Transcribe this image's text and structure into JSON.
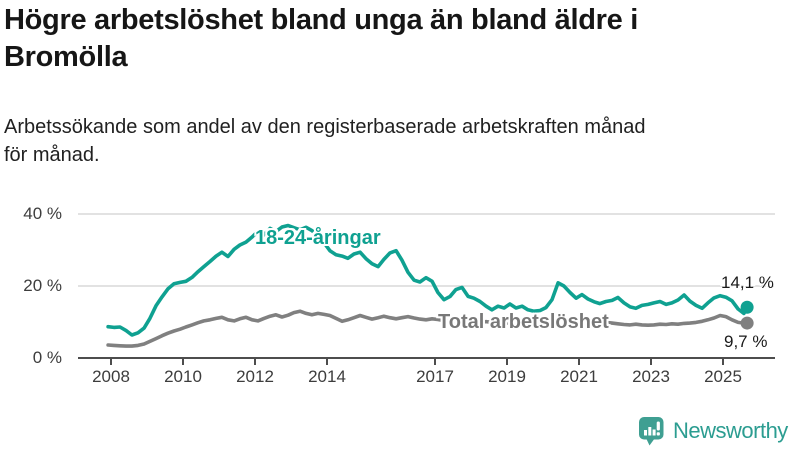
{
  "header": {
    "title_lines": [
      "Högre arbetslöshet bland unga än bland äldre i",
      "Bromölla"
    ],
    "subtitle_lines": [
      "Arbetssökande som andel av den registerbaserade arbetskraften månad",
      "för månad."
    ]
  },
  "colors": {
    "young_line": "#0FA191",
    "total_line": "#808080",
    "total_label": "#787878",
    "gridline": "#d9d9d9",
    "axis": "#4d4d4d",
    "logo_icon": "#3F9F92",
    "logo_text": "#2C9D91"
  },
  "annotations": {
    "young_label": "18-24-åringar",
    "total_label": "Total arbetslöshet",
    "young_end_value": "14,1 %",
    "total_end_value": "9,7 %"
  },
  "logo": {
    "name": "Newsworthy"
  },
  "chart_data": {
    "type": "line",
    "title": "Högre arbetslöshet bland unga än bland äldre i Bromölla",
    "xlabel": "",
    "ylabel": "Arbetssökande som andel av den registerbaserade arbetskraften (%)",
    "ylim": [
      0,
      44
    ],
    "xlim": [
      2007.9,
      2026.4
    ],
    "grid": "horizontal",
    "legend_position": "inline-labels",
    "y_ticks": [
      {
        "value": 0,
        "label": "0 %"
      },
      {
        "value": 20,
        "label": "20 %"
      },
      {
        "value": 40,
        "label": "40 %"
      }
    ],
    "x_ticks": [
      {
        "value": 2008,
        "label": "2008"
      },
      {
        "value": 2010,
        "label": "2010"
      },
      {
        "value": 2012,
        "label": "2012"
      },
      {
        "value": 2014,
        "label": "2014"
      },
      {
        "value": 2017,
        "label": "2017"
      },
      {
        "value": 2019,
        "label": "2019"
      },
      {
        "value": 2021,
        "label": "2021"
      },
      {
        "value": 2023,
        "label": "2023"
      },
      {
        "value": 2025,
        "label": "2025"
      }
    ],
    "x": [
      2007.92,
      2008.08,
      2008.25,
      2008.42,
      2008.58,
      2008.75,
      2008.92,
      2009.08,
      2009.25,
      2009.42,
      2009.58,
      2009.75,
      2009.92,
      2010.08,
      2010.25,
      2010.42,
      2010.58,
      2010.75,
      2010.92,
      2011.08,
      2011.25,
      2011.42,
      2011.58,
      2011.75,
      2011.92,
      2012.08,
      2012.25,
      2012.42,
      2012.58,
      2012.75,
      2012.92,
      2013.08,
      2013.25,
      2013.42,
      2013.58,
      2013.75,
      2013.92,
      2014.08,
      2014.25,
      2014.42,
      2014.58,
      2014.75,
      2014.92,
      2015.08,
      2015.25,
      2015.42,
      2015.58,
      2015.75,
      2015.92,
      2016.08,
      2016.25,
      2016.42,
      2016.58,
      2016.75,
      2016.92,
      2017.08,
      2017.25,
      2017.42,
      2017.58,
      2017.75,
      2017.92,
      2018.08,
      2018.25,
      2018.42,
      2018.58,
      2018.75,
      2018.92,
      2019.08,
      2019.25,
      2019.42,
      2019.58,
      2019.75,
      2019.92,
      2020.08,
      2020.25,
      2020.42,
      2020.58,
      2020.75,
      2020.92,
      2021.08,
      2021.25,
      2021.42,
      2021.58,
      2021.75,
      2021.92,
      2022.08,
      2022.25,
      2022.42,
      2022.58,
      2022.75,
      2022.92,
      2023.08,
      2023.25,
      2023.42,
      2023.58,
      2023.75,
      2023.92,
      2024.08,
      2024.25,
      2024.42,
      2024.58,
      2024.75,
      2024.92,
      2025.08,
      2025.25,
      2025.42,
      2025.58,
      2025.67
    ],
    "series": [
      {
        "name": "18-24-åringar",
        "color": "#0FA191",
        "end_label": "14,1 %",
        "end_value": 14.1,
        "values": [
          8.7,
          8.5,
          8.6,
          7.6,
          6.4,
          7.0,
          8.3,
          11.0,
          14.5,
          17.0,
          19.2,
          20.6,
          21.0,
          21.3,
          22.4,
          24.0,
          25.4,
          26.8,
          28.3,
          29.4,
          28.2,
          30.2,
          31.4,
          32.2,
          33.6,
          35.2,
          34.2,
          36.0,
          35.1,
          36.4,
          36.8,
          36.2,
          35.6,
          36.3,
          35.4,
          34.2,
          32.0,
          29.8,
          28.7,
          28.3,
          27.7,
          28.9,
          29.4,
          27.6,
          26.2,
          25.4,
          27.4,
          29.2,
          29.8,
          27.2,
          23.8,
          21.6,
          21.1,
          22.3,
          21.3,
          18.2,
          16.2,
          17.1,
          19.0,
          19.6,
          17.1,
          16.6,
          15.7,
          14.4,
          13.4,
          14.4,
          13.9,
          15.0,
          13.9,
          14.4,
          13.4,
          13.0,
          13.2,
          14.0,
          16.2,
          20.9,
          20.0,
          18.2,
          16.6,
          17.6,
          16.4,
          15.6,
          15.1,
          15.7,
          16.0,
          16.8,
          15.3,
          14.2,
          13.8,
          14.6,
          14.9,
          15.3,
          15.7,
          14.9,
          15.3,
          16.1,
          17.5,
          15.8,
          14.6,
          13.8,
          15.3,
          16.7,
          17.3,
          16.9,
          15.9,
          13.6,
          12.4,
          14.1
        ]
      },
      {
        "name": "Total arbetslöshet",
        "color": "#808080",
        "end_label": "9,7 %",
        "end_value": 9.7,
        "values": [
          3.6,
          3.5,
          3.4,
          3.3,
          3.3,
          3.5,
          3.9,
          4.6,
          5.4,
          6.2,
          6.9,
          7.5,
          8.0,
          8.6,
          9.2,
          9.8,
          10.3,
          10.6,
          11.0,
          11.3,
          10.6,
          10.3,
          10.9,
          11.3,
          10.6,
          10.3,
          11.0,
          11.6,
          12.0,
          11.4,
          11.9,
          12.6,
          13.0,
          12.4,
          12.0,
          12.4,
          12.1,
          11.8,
          11.0,
          10.2,
          10.6,
          11.2,
          11.8,
          11.3,
          10.8,
          11.2,
          11.6,
          11.2,
          10.9,
          11.2,
          11.5,
          11.1,
          10.8,
          10.6,
          10.9,
          10.7,
          10.4,
          10.2,
          10.4,
          10.6,
          10.3,
          10.1,
          9.9,
          10.1,
          9.9,
          9.7,
          9.6,
          9.8,
          9.6,
          9.4,
          9.6,
          9.8,
          9.7,
          10.2,
          10.8,
          11.1,
          10.9,
          10.7,
          10.5,
          10.3,
          10.1,
          9.9,
          9.8,
          9.9,
          9.7,
          9.5,
          9.3,
          9.2,
          9.4,
          9.2,
          9.1,
          9.2,
          9.4,
          9.3,
          9.5,
          9.4,
          9.6,
          9.7,
          9.9,
          10.2,
          10.6,
          11.1,
          11.8,
          11.5,
          10.6,
          9.9,
          9.7,
          9.7
        ]
      }
    ]
  }
}
